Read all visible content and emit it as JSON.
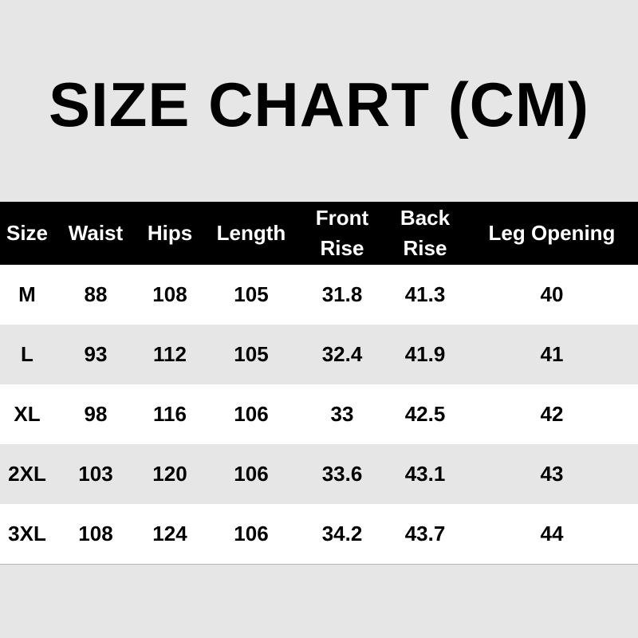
{
  "title": "SIZE CHART (CM)",
  "table": {
    "headers": [
      [
        "Size"
      ],
      [
        "Waist"
      ],
      [
        "Hips"
      ],
      [
        "Length"
      ],
      [
        "Front",
        "Rise"
      ],
      [
        "Back",
        "Rise"
      ],
      [
        "Leg Opening"
      ]
    ],
    "rows": [
      [
        "M",
        "88",
        "108",
        "105",
        "31.8",
        "41.3",
        "40"
      ],
      [
        "L",
        "93",
        "112",
        "105",
        "32.4",
        "41.9",
        "41"
      ],
      [
        "XL",
        "98",
        "116",
        "106",
        "33",
        "42.5",
        "42"
      ],
      [
        "2XL",
        "103",
        "120",
        "106",
        "33.6",
        "43.1",
        "43"
      ],
      [
        "3XL",
        "108",
        "124",
        "106",
        "34.2",
        "43.7",
        "44"
      ]
    ]
  },
  "colors": {
    "header_bg": "#000000",
    "header_text": "#ffffff",
    "row_alt": "#e6e6e6",
    "row": "#ffffff"
  }
}
